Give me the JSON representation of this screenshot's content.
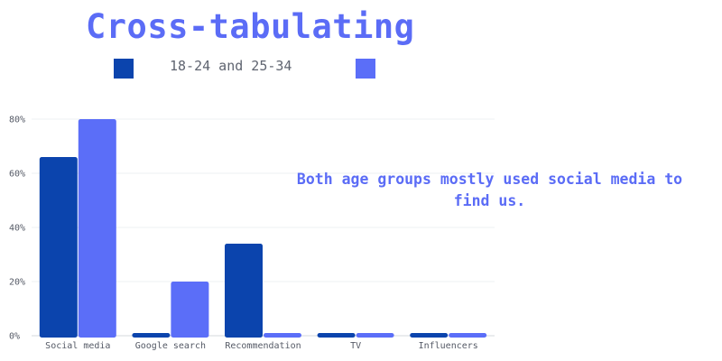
{
  "chart_data": {
    "type": "bar",
    "title": "Cross-tabulating",
    "legend_text": "18-24 and 25-34",
    "categories": [
      "Social media",
      "Google search",
      "Recommendation",
      "TV",
      "Influencers"
    ],
    "series": [
      {
        "values": [
          66,
          1,
          34,
          1,
          1
        ],
        "color": "#0b44ad"
      },
      {
        "values": [
          80,
          20,
          1,
          1,
          1
        ],
        "color": "#5b6ef8"
      }
    ],
    "ylim": [
      0,
      80
    ],
    "yticks": [
      "0%",
      "20%",
      "40%",
      "60%",
      "80%"
    ],
    "grid": true,
    "legend_position": "top",
    "annotation": "Both age groups mostly used social media to find us."
  }
}
